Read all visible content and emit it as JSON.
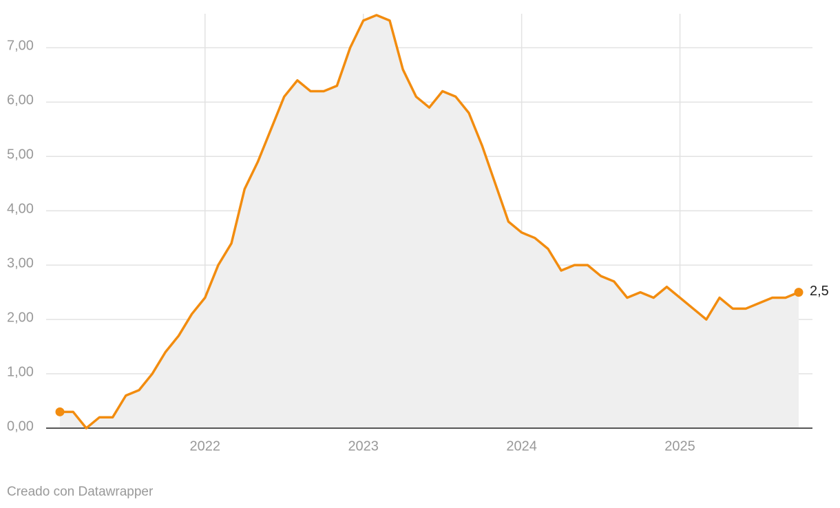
{
  "chart_data": {
    "type": "line",
    "x": [
      "2021-02",
      "2021-03",
      "2021-04",
      "2021-05",
      "2021-06",
      "2021-07",
      "2021-08",
      "2021-09",
      "2021-10",
      "2021-11",
      "2021-12",
      "2022-01",
      "2022-02",
      "2022-03",
      "2022-04",
      "2022-05",
      "2022-06",
      "2022-07",
      "2022-08",
      "2022-09",
      "2022-10",
      "2022-11",
      "2022-12",
      "2023-01",
      "2023-02",
      "2023-03",
      "2023-04",
      "2023-05",
      "2023-06",
      "2023-07",
      "2023-08",
      "2023-09",
      "2023-10",
      "2023-11",
      "2023-12",
      "2024-01",
      "2024-02",
      "2024-03",
      "2024-04",
      "2024-05",
      "2024-06",
      "2024-07",
      "2024-08",
      "2024-09",
      "2024-10",
      "2024-11",
      "2024-12",
      "2025-01",
      "2025-02",
      "2025-03",
      "2025-04",
      "2025-05",
      "2025-06",
      "2025-07",
      "2025-08",
      "2025-09",
      "2025-10"
    ],
    "series": [
      {
        "color": "#f28c0f",
        "area_color": "#efefef",
        "values": [
          0.3,
          0.3,
          0.0,
          0.2,
          0.2,
          0.6,
          0.7,
          1.0,
          1.4,
          1.7,
          2.1,
          2.4,
          3.0,
          3.4,
          4.4,
          4.9,
          5.5,
          6.1,
          6.4,
          6.2,
          6.2,
          6.3,
          7.0,
          7.5,
          7.6,
          7.5,
          6.6,
          6.1,
          5.9,
          6.2,
          6.1,
          5.8,
          5.2,
          4.5,
          3.8,
          3.6,
          3.5,
          3.3,
          2.9,
          3.0,
          3.0,
          2.8,
          2.7,
          2.4,
          2.5,
          2.4,
          2.6,
          2.4,
          2.2,
          2.0,
          2.4,
          2.2,
          2.2,
          2.3,
          2.4,
          2.4,
          2.5
        ],
        "value_labels": [
          null,
          null,
          null,
          null,
          null,
          null,
          null,
          null,
          null,
          null,
          null,
          null,
          null,
          null,
          null,
          null,
          null,
          null,
          null,
          null,
          null,
          null,
          null,
          null,
          null,
          null,
          null,
          null,
          null,
          null,
          null,
          null,
          null,
          null,
          null,
          null,
          null,
          null,
          null,
          null,
          null,
          null,
          null,
          null,
          null,
          null,
          null,
          null,
          null,
          null,
          null,
          null,
          null,
          null,
          null,
          null,
          "2,5"
        ]
      }
    ],
    "xlim": [
      "2021-02",
      "2025-10"
    ],
    "xticks": [
      {
        "value": "2022-01",
        "label": "2022"
      },
      {
        "value": "2023-01",
        "label": "2023"
      },
      {
        "value": "2024-01",
        "label": "2024"
      },
      {
        "value": "2025-01",
        "label": "2025"
      }
    ],
    "ylim": [
      0,
      7.6
    ],
    "yticks": [
      {
        "value": 0,
        "label": "0,00"
      },
      {
        "value": 1,
        "label": "1,00"
      },
      {
        "value": 2,
        "label": "2,00"
      },
      {
        "value": 3,
        "label": "3,00"
      },
      {
        "value": 4,
        "label": "4,00"
      },
      {
        "value": 5,
        "label": "5,00"
      },
      {
        "value": 6,
        "label": "6,00"
      },
      {
        "value": 7,
        "label": "7,00"
      }
    ],
    "grid": true,
    "footer": "Creado con Datawrapper"
  }
}
